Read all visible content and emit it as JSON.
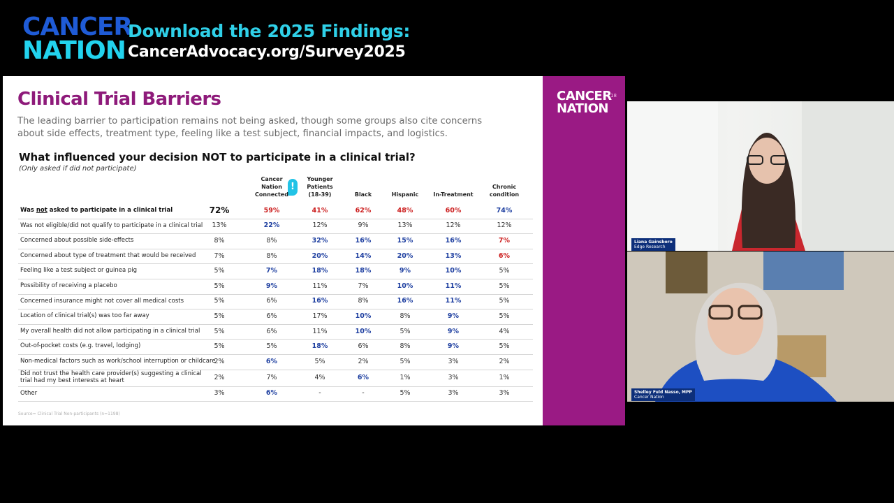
{
  "banner": {
    "brand_line1": "CANCER",
    "brand_line2": "NATION",
    "title": "Download the 2025 Findings:",
    "url": "CancerAdvocacy.org/Survey2025"
  },
  "slide": {
    "title": "Clinical Trial Barriers",
    "subtitle": "The leading barrier to participation remains not being asked, though some groups also cite concerns about side effects, treatment type, feeling like a test subject, financial impacts, and logistics.",
    "question": "What influenced your decision NOT to participate in a clinical trial?",
    "question_note": "(Only asked if did not participate)",
    "source": "Source= Clinical Trial Non-participants (n=1198)",
    "side_logo_line1": "CANCER",
    "side_logo_line2": "NATION",
    "page_number": "18",
    "flag_icon": "!",
    "columns": [
      {
        "line1": "Cancer",
        "line2": "Nation",
        "line3": "Connected"
      },
      {
        "line1": "Younger",
        "line2": "Patients",
        "line3": "(18-39)"
      },
      {
        "line1": "",
        "line2": "",
        "line3": "Black"
      },
      {
        "line1": "",
        "line2": "",
        "line3": "Hispanic"
      },
      {
        "line1": "",
        "line2": "",
        "line3": "In-Treatment"
      },
      {
        "line1": "",
        "line2": "Chronic",
        "line3": "condition"
      }
    ],
    "rows": [
      {
        "label": "Was not asked to participate in a clinical trial",
        "total": "72%",
        "v": [
          "59%",
          "41%",
          "62%",
          "48%",
          "60%",
          "74%"
        ],
        "c": [
          "red",
          "red",
          "red",
          "red",
          "red",
          "blue"
        ]
      },
      {
        "label": "Was not eligible/did not qualify to participate in a clinical trial",
        "total": "13%",
        "v": [
          "22%",
          "12%",
          "9%",
          "13%",
          "12%",
          "12%"
        ],
        "c": [
          "blue",
          "plain",
          "plain",
          "plain",
          "plain",
          "plain"
        ]
      },
      {
        "label": "Concerned about possible side-effects",
        "total": "8%",
        "v": [
          "8%",
          "32%",
          "16%",
          "15%",
          "16%",
          "7%"
        ],
        "c": [
          "plain",
          "blue",
          "blue",
          "blue",
          "blue",
          "red"
        ]
      },
      {
        "label": "Concerned about type of treatment that would be received",
        "total": "7%",
        "v": [
          "8%",
          "20%",
          "14%",
          "20%",
          "13%",
          "6%"
        ],
        "c": [
          "plain",
          "blue",
          "blue",
          "blue",
          "blue",
          "red"
        ]
      },
      {
        "label": "Feeling like a test subject or guinea pig",
        "total": "5%",
        "v": [
          "7%",
          "18%",
          "18%",
          "9%",
          "10%",
          "5%"
        ],
        "c": [
          "blue",
          "blue",
          "blue",
          "blue",
          "blue",
          "plain"
        ]
      },
      {
        "label": "Possibility of receiving a placebo",
        "total": "5%",
        "v": [
          "9%",
          "11%",
          "7%",
          "10%",
          "11%",
          "5%"
        ],
        "c": [
          "blue",
          "plain",
          "plain",
          "blue",
          "blue",
          "plain"
        ]
      },
      {
        "label": "Concerned insurance might not cover all medical costs",
        "total": "5%",
        "v": [
          "6%",
          "16%",
          "8%",
          "16%",
          "11%",
          "5%"
        ],
        "c": [
          "plain",
          "blue",
          "plain",
          "blue",
          "blue",
          "plain"
        ]
      },
      {
        "label": "Location of clinical trial(s) was too far away",
        "total": "5%",
        "v": [
          "6%",
          "17%",
          "10%",
          "8%",
          "9%",
          "5%"
        ],
        "c": [
          "plain",
          "plain",
          "blue",
          "plain",
          "blue",
          "plain"
        ]
      },
      {
        "label": "My overall health did not allow participating in a clinical trial",
        "total": "5%",
        "v": [
          "6%",
          "11%",
          "10%",
          "5%",
          "9%",
          "4%"
        ],
        "c": [
          "plain",
          "plain",
          "blue",
          "plain",
          "blue",
          "plain"
        ]
      },
      {
        "label": "Out-of-pocket costs (e.g. travel, lodging)",
        "total": "5%",
        "v": [
          "5%",
          "18%",
          "6%",
          "8%",
          "9%",
          "5%"
        ],
        "c": [
          "plain",
          "blue",
          "plain",
          "plain",
          "blue",
          "plain"
        ]
      },
      {
        "label": "Non-medical factors such as work/school interruption or childcare",
        "total": "2%",
        "v": [
          "6%",
          "5%",
          "2%",
          "5%",
          "3%",
          "2%"
        ],
        "c": [
          "blue",
          "plain",
          "plain",
          "plain",
          "plain",
          "plain"
        ]
      },
      {
        "label": "Did not trust the health care provider(s) suggesting a clinical trial had my best interests at heart",
        "total": "2%",
        "v": [
          "7%",
          "4%",
          "6%",
          "1%",
          "3%",
          "1%"
        ],
        "c": [
          "plain",
          "plain",
          "blue",
          "plain",
          "plain",
          "plain"
        ]
      },
      {
        "label": "Other",
        "total": "3%",
        "v": [
          "6%",
          "-",
          "-",
          "5%",
          "3%",
          "3%"
        ],
        "c": [
          "blue",
          "plain",
          "plain",
          "plain",
          "plain",
          "plain"
        ]
      }
    ]
  },
  "participants": [
    {
      "name": "Liana Gainsboro",
      "org": "Edge Research"
    },
    {
      "name": "Shelley Fuld Nasso, MPP",
      "org": "Cancer Nation"
    }
  ],
  "colors": {
    "accent_magenta": "#8e1a7a",
    "accent_cyan": "#2fd0e8",
    "value_blue": "#1e3fa0",
    "value_red": "#cc1f1f"
  }
}
